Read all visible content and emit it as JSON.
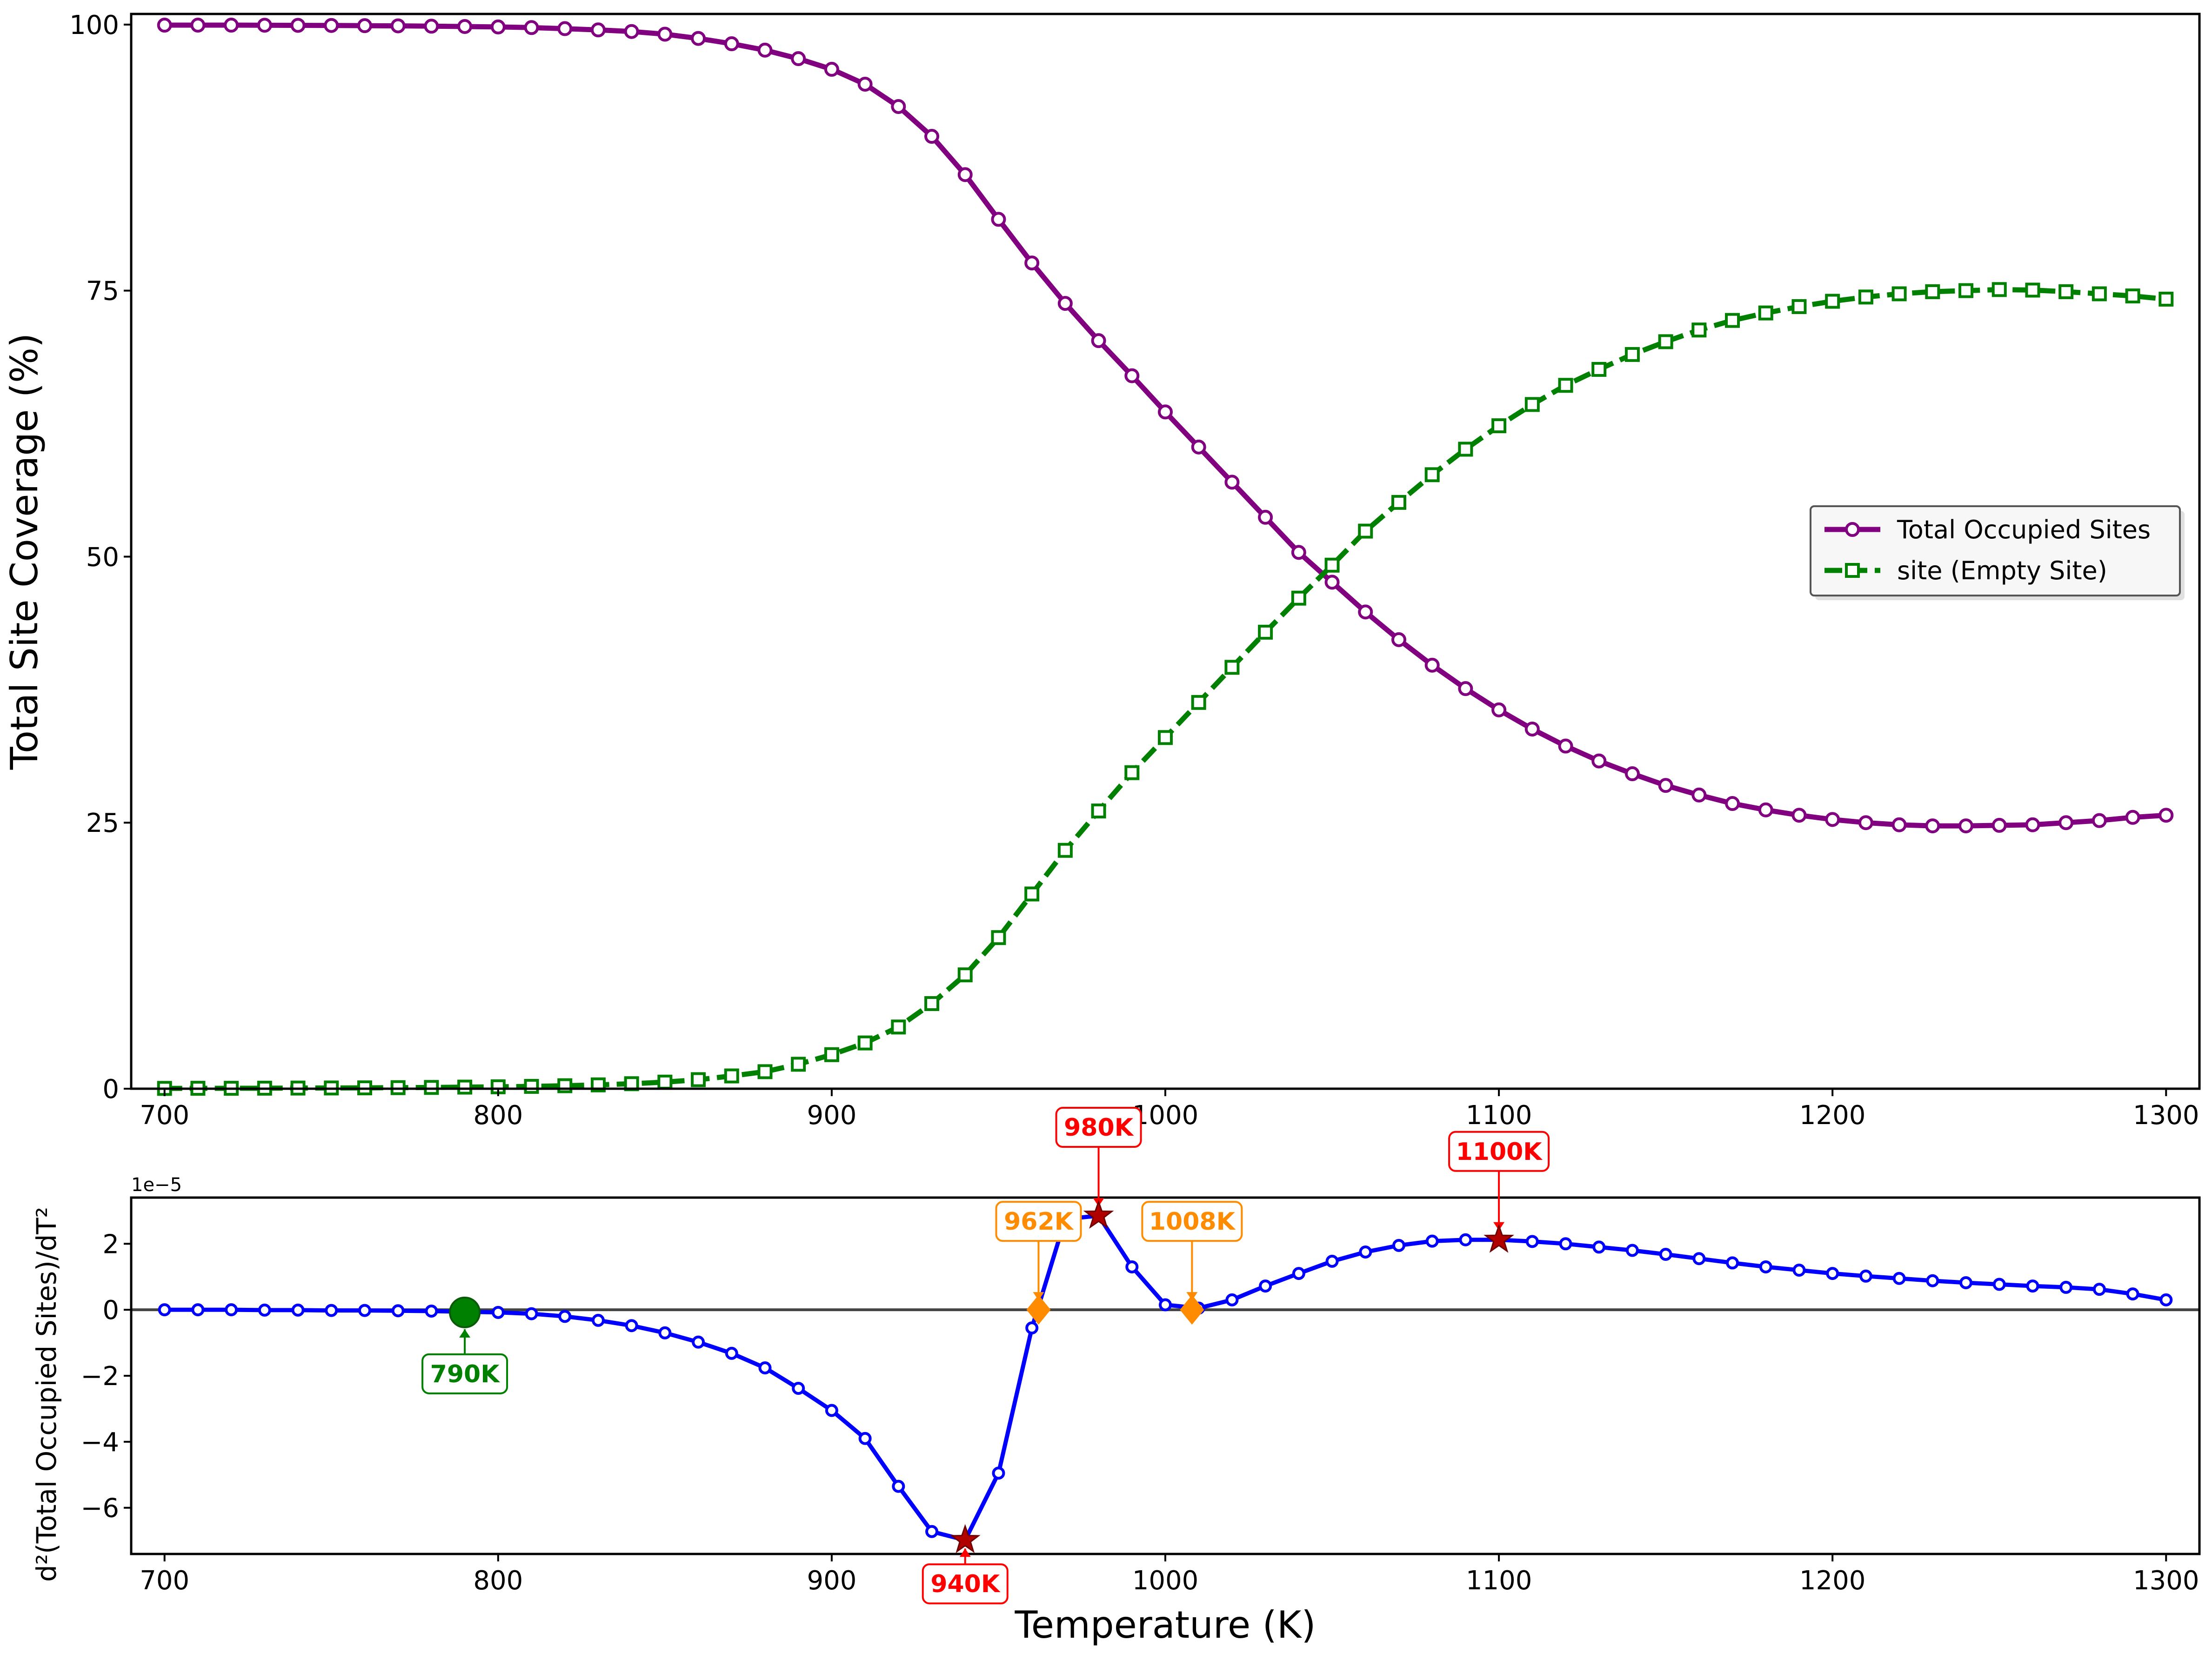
{
  "chart_data": [
    {
      "type": "line",
      "ylabel": "Total Site Coverage (%)",
      "xlabel": "",
      "xlim": [
        690,
        1310
      ],
      "ylim": [
        0,
        101
      ],
      "x_ticks": [
        "700",
        "800",
        "900",
        "1000",
        "1100",
        "1200",
        "1300"
      ],
      "y_ticks": [
        "0",
        "25",
        "50",
        "75",
        "100"
      ],
      "legend_placement": "center-right",
      "x": [
        700,
        710,
        720,
        730,
        740,
        750,
        760,
        770,
        780,
        790,
        800,
        810,
        820,
        830,
        840,
        850,
        860,
        870,
        880,
        890,
        900,
        910,
        920,
        930,
        940,
        950,
        960,
        970,
        980,
        990,
        1000,
        1010,
        1020,
        1030,
        1040,
        1050,
        1060,
        1070,
        1080,
        1090,
        1100,
        1110,
        1120,
        1130,
        1140,
        1150,
        1160,
        1170,
        1180,
        1190,
        1200,
        1210,
        1220,
        1230,
        1240,
        1250,
        1260,
        1270,
        1280,
        1290,
        1300
      ],
      "series": [
        {
          "name": "Total Occupied Sites",
          "color": "#800080",
          "marker": "circle",
          "linestyle": "solid",
          "values": [
            99.95,
            99.95,
            99.95,
            99.94,
            99.93,
            99.92,
            99.9,
            99.88,
            99.85,
            99.82,
            99.78,
            99.72,
            99.62,
            99.5,
            99.35,
            99.1,
            98.7,
            98.2,
            97.6,
            96.8,
            95.8,
            94.4,
            92.3,
            89.5,
            85.9,
            81.7,
            77.6,
            73.8,
            70.3,
            67.0,
            63.6,
            60.3,
            57.0,
            53.7,
            50.4,
            47.6,
            44.8,
            42.2,
            39.8,
            37.6,
            35.6,
            33.8,
            32.2,
            30.8,
            29.6,
            28.5,
            27.6,
            26.8,
            26.2,
            25.7,
            25.3,
            25.0,
            24.8,
            24.7,
            24.7,
            24.75,
            24.8,
            25.0,
            25.2,
            25.5,
            25.7
          ]
        },
        {
          "name": "site (Empty Site)",
          "color": "#008000",
          "marker": "square",
          "linestyle": "dashed",
          "values": [
            0.03,
            0.04,
            0.04,
            0.05,
            0.06,
            0.07,
            0.08,
            0.1,
            0.12,
            0.15,
            0.18,
            0.22,
            0.28,
            0.36,
            0.47,
            0.62,
            0.85,
            1.2,
            1.6,
            2.3,
            3.2,
            4.3,
            5.8,
            8.0,
            10.7,
            14.2,
            18.3,
            22.4,
            26.1,
            29.7,
            33.0,
            36.3,
            39.6,
            42.9,
            46.1,
            49.2,
            52.4,
            55.1,
            57.7,
            60.1,
            62.3,
            64.3,
            66.1,
            67.6,
            69.0,
            70.2,
            71.3,
            72.2,
            72.9,
            73.5,
            74.0,
            74.4,
            74.7,
            74.9,
            75.0,
            75.1,
            75.05,
            74.9,
            74.7,
            74.5,
            74.2
          ]
        }
      ]
    },
    {
      "type": "line",
      "ylabel": "d²(Total Occupied Sites)/dT²",
      "xlabel": "Temperature (K)",
      "xlim": [
        690,
        1310
      ],
      "ylim": [
        -7.4,
        3.4
      ],
      "y_offset_label": "1e−5",
      "x_ticks": [
        "700",
        "800",
        "900",
        "1000",
        "1100",
        "1200",
        "1300"
      ],
      "y_ticks": [
        "−6",
        "−4",
        "−2",
        "0",
        "2"
      ],
      "zero_line": true,
      "x": [
        700,
        710,
        720,
        730,
        740,
        750,
        760,
        770,
        780,
        790,
        800,
        810,
        820,
        830,
        840,
        850,
        860,
        870,
        880,
        890,
        900,
        910,
        920,
        930,
        940,
        950,
        960,
        970,
        980,
        990,
        1000,
        1010,
        1020,
        1030,
        1040,
        1050,
        1060,
        1070,
        1080,
        1090,
        1100,
        1110,
        1120,
        1130,
        1140,
        1150,
        1160,
        1170,
        1180,
        1190,
        1200,
        1210,
        1220,
        1230,
        1240,
        1250,
        1260,
        1270,
        1280,
        1290,
        1300
      ],
      "series": [
        {
          "color": "#0000ff",
          "marker": "circle",
          "linestyle": "solid",
          "values": [
            0.0,
            0.0,
            0.0,
            -0.01,
            -0.01,
            -0.02,
            -0.02,
            -0.03,
            -0.04,
            -0.06,
            -0.08,
            -0.12,
            -0.2,
            -0.32,
            -0.48,
            -0.7,
            -0.98,
            -1.32,
            -1.76,
            -2.38,
            -3.05,
            -3.9,
            -5.35,
            -6.72,
            -6.98,
            -4.95,
            -0.55,
            2.75,
            2.85,
            1.3,
            0.15,
            0.05,
            0.3,
            0.72,
            1.1,
            1.47,
            1.75,
            1.95,
            2.08,
            2.12,
            2.12,
            2.07,
            2.0,
            1.9,
            1.8,
            1.68,
            1.55,
            1.42,
            1.3,
            1.2,
            1.1,
            1.02,
            0.95,
            0.88,
            0.82,
            0.77,
            0.72,
            0.68,
            0.62,
            0.48,
            0.3
          ]
        }
      ],
      "annotations": [
        {
          "label": "790K",
          "x": 790,
          "y": -0.08,
          "color": "#008000",
          "marker": "circle",
          "box": "below"
        },
        {
          "label": "940K",
          "x": 940,
          "y": -6.98,
          "color": "#ff0000",
          "marker": "star",
          "box": "below"
        },
        {
          "label": "962K",
          "x": 962,
          "y": 0,
          "color": "#ff8c00",
          "marker": "diamond",
          "box": "above"
        },
        {
          "label": "980K",
          "x": 980,
          "y": 2.85,
          "color": "#ff0000",
          "marker": "star",
          "box": "above"
        },
        {
          "label": "1008K",
          "x": 1008,
          "y": 0,
          "color": "#ff8c00",
          "marker": "diamond",
          "box": "above"
        },
        {
          "label": "1100K",
          "x": 1100,
          "y": 2.12,
          "color": "#ff0000",
          "marker": "star",
          "box": "above"
        }
      ]
    }
  ]
}
